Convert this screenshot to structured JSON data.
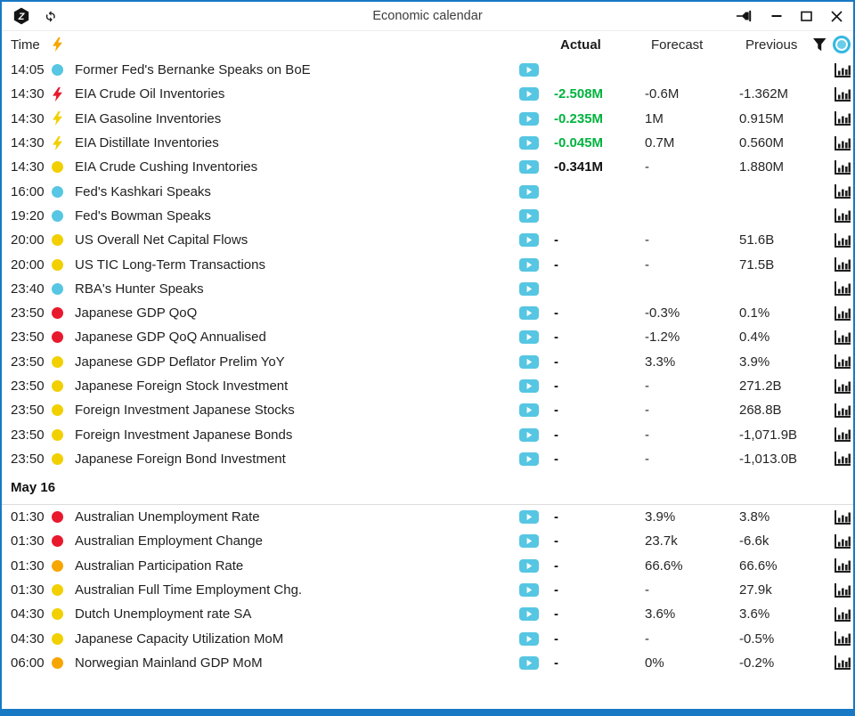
{
  "window": {
    "title": "Economic calendar"
  },
  "titlebar_icons": [
    "app-logo",
    "refresh",
    "pin",
    "minimize",
    "maximize",
    "close"
  ],
  "header": {
    "time_label": "Time",
    "actual_label": "Actual",
    "forecast_label": "Forecast",
    "previous_label": "Previous",
    "filter_icon": "funnel-icon",
    "mode_icon": "cyan-ring-toggle"
  },
  "colors": {
    "accent_blue": "#1779c4",
    "cyan": "#56c6e3",
    "red": "#e8192d",
    "yellow": "#f2d000",
    "orange": "#f7a600",
    "green": "#00b33e",
    "icon_dark": "#1f1f1f"
  },
  "sections": [
    {
      "date_label": "",
      "rows": [
        {
          "time": "14:05",
          "impact": "cyan-dot",
          "title": "Former Fed's Bernanke Speaks on BoE",
          "play": true,
          "actual": "",
          "actual_green": false,
          "forecast": "",
          "previous": "",
          "chart": false
        },
        {
          "time": "14:30",
          "impact": "red-bolt",
          "title": "EIA Crude Oil Inventories",
          "play": false,
          "actual": "-2.508M",
          "actual_green": true,
          "forecast": "-0.6M",
          "previous": "-1.362M",
          "chart": true
        },
        {
          "time": "14:30",
          "impact": "yellow-bolt",
          "title": "EIA Gasoline Inventories",
          "play": false,
          "actual": "-0.235M",
          "actual_green": true,
          "forecast": "1M",
          "previous": "0.915M",
          "chart": true
        },
        {
          "time": "14:30",
          "impact": "yellow-bolt",
          "title": "EIA Distillate Inventories",
          "play": false,
          "actual": "-0.045M",
          "actual_green": true,
          "forecast": "0.7M",
          "previous": "0.560M",
          "chart": true
        },
        {
          "time": "14:30",
          "impact": "yellow-dot",
          "title": "EIA Crude Cushing Inventories",
          "play": false,
          "actual": "-0.341M",
          "actual_green": false,
          "forecast": "-",
          "previous": "1.880M",
          "chart": true
        },
        {
          "time": "16:00",
          "impact": "cyan-dot",
          "title": "Fed's Kashkari Speaks",
          "play": true,
          "actual": "",
          "actual_green": false,
          "forecast": "",
          "previous": "",
          "chart": false
        },
        {
          "time": "19:20",
          "impact": "cyan-dot",
          "title": "Fed's Bowman Speaks",
          "play": true,
          "actual": "",
          "actual_green": false,
          "forecast": "",
          "previous": "",
          "chart": false
        },
        {
          "time": "20:00",
          "impact": "yellow-dot",
          "title": "US Overall Net Capital Flows",
          "play": false,
          "actual": "-",
          "actual_green": false,
          "forecast": "-",
          "previous": "51.6B",
          "chart": true
        },
        {
          "time": "20:00",
          "impact": "yellow-dot",
          "title": "US TIC Long-Term Transactions",
          "play": false,
          "actual": "-",
          "actual_green": false,
          "forecast": "-",
          "previous": "71.5B",
          "chart": true
        },
        {
          "time": "23:40",
          "impact": "cyan-dot",
          "title": "RBA's Hunter Speaks",
          "play": false,
          "actual": "",
          "actual_green": false,
          "forecast": "",
          "previous": "",
          "chart": false
        },
        {
          "time": "23:50",
          "impact": "red-dot",
          "title": "Japanese GDP QoQ",
          "play": false,
          "actual": "-",
          "actual_green": false,
          "forecast": "-0.3%",
          "previous": "0.1%",
          "chart": true
        },
        {
          "time": "23:50",
          "impact": "red-dot",
          "title": "Japanese GDP QoQ Annualised",
          "play": false,
          "actual": "-",
          "actual_green": false,
          "forecast": "-1.2%",
          "previous": "0.4%",
          "chart": true
        },
        {
          "time": "23:50",
          "impact": "yellow-dot",
          "title": "Japanese GDP Deflator Prelim YoY",
          "play": false,
          "actual": "-",
          "actual_green": false,
          "forecast": "3.3%",
          "previous": "3.9%",
          "chart": true
        },
        {
          "time": "23:50",
          "impact": "yellow-dot",
          "title": "Japanese Foreign Stock Investment",
          "play": false,
          "actual": "-",
          "actual_green": false,
          "forecast": "-",
          "previous": "271.2B",
          "chart": true
        },
        {
          "time": "23:50",
          "impact": "yellow-dot",
          "title": "Foreign Investment Japanese Stocks",
          "play": false,
          "actual": "-",
          "actual_green": false,
          "forecast": "-",
          "previous": "268.8B",
          "chart": true
        },
        {
          "time": "23:50",
          "impact": "yellow-dot",
          "title": "Foreign Investment Japanese Bonds",
          "play": false,
          "actual": "-",
          "actual_green": false,
          "forecast": "-",
          "previous": "-1,071.9B",
          "chart": true
        },
        {
          "time": "23:50",
          "impact": "yellow-dot",
          "title": "Japanese Foreign Bond Investment",
          "play": false,
          "actual": "-",
          "actual_green": false,
          "forecast": "-",
          "previous": "-1,013.0B",
          "chart": true
        }
      ]
    },
    {
      "date_label": "May 16",
      "rows": [
        {
          "time": "01:30",
          "impact": "red-dot",
          "title": "Australian Unemployment Rate",
          "play": false,
          "actual": "-",
          "actual_green": false,
          "forecast": "3.9%",
          "previous": "3.8%",
          "chart": true
        },
        {
          "time": "01:30",
          "impact": "red-dot",
          "title": "Australian Employment Change",
          "play": false,
          "actual": "-",
          "actual_green": false,
          "forecast": "23.7k",
          "previous": "-6.6k",
          "chart": true
        },
        {
          "time": "01:30",
          "impact": "orange-dot",
          "title": "Australian Participation Rate",
          "play": false,
          "actual": "-",
          "actual_green": false,
          "forecast": "66.6%",
          "previous": "66.6%",
          "chart": true
        },
        {
          "time": "01:30",
          "impact": "yellow-dot",
          "title": "Australian Full Time Employment Chg.",
          "play": false,
          "actual": "-",
          "actual_green": false,
          "forecast": "-",
          "previous": "27.9k",
          "chart": true
        },
        {
          "time": "04:30",
          "impact": "yellow-dot",
          "title": "Dutch Unemployment rate SA",
          "play": false,
          "actual": "-",
          "actual_green": false,
          "forecast": "3.6%",
          "previous": "3.6%",
          "chart": true
        },
        {
          "time": "04:30",
          "impact": "yellow-dot",
          "title": "Japanese Capacity Utilization MoM",
          "play": false,
          "actual": "-",
          "actual_green": false,
          "forecast": "-",
          "previous": "-0.5%",
          "chart": true
        },
        {
          "time": "06:00",
          "impact": "orange-dot",
          "title": "Norwegian Mainland GDP MoM",
          "play": false,
          "actual": "-",
          "actual_green": false,
          "forecast": "0%",
          "previous": "-0.2%",
          "chart": true
        }
      ]
    }
  ]
}
